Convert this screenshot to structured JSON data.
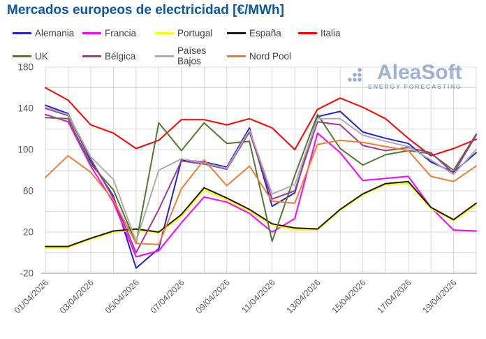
{
  "header": {
    "title": "Mercados europeos de electricidad [€/MWh]"
  },
  "watermark": {
    "brand": "AleaSoft",
    "tagline": "ENERGY FORECASTING",
    "color": "#3e68a8"
  },
  "axis_colors": {
    "grid": "#d9d9d9",
    "axis_line": "#a6a6a6",
    "tick_text": "#595959"
  },
  "chart_data": {
    "type": "line",
    "title": "Mercados europeos de electricidad [€/MWh]",
    "xlabel": "",
    "ylabel": "",
    "ylim": [
      -20,
      180
    ],
    "grid_interval": 20,
    "grid": true,
    "legend_position": "top",
    "ytick_labels": [
      180,
      140,
      100,
      60,
      20,
      -20
    ],
    "x_dates": [
      "01/04/2026",
      "02/04/2026",
      "03/04/2026",
      "04/04/2026",
      "05/04/2026",
      "06/04/2026",
      "07/04/2026",
      "08/04/2026",
      "09/04/2026",
      "10/04/2026",
      "11/04/2026",
      "12/04/2026",
      "13/04/2026",
      "14/04/2026",
      "15/04/2026",
      "16/04/2026",
      "17/04/2026",
      "18/04/2026",
      "19/04/2026",
      "20/04/2026"
    ],
    "x_tick_labels": [
      "01/04/2026",
      "03/04/2026",
      "05/04/2026",
      "07/04/2026",
      "09/04/2026",
      "11/04/2026",
      "13/04/2026",
      "15/04/2026",
      "17/04/2026",
      "19/04/2026"
    ],
    "series": [
      {
        "name": "Alemania",
        "color": "#2222e0",
        "values": [
          143,
          135,
          89,
          55,
          -15,
          4,
          90,
          88,
          83,
          121,
          45,
          58,
          132,
          137,
          117,
          111,
          106,
          88,
          78,
          97
        ]
      },
      {
        "name": "Francia",
        "color": "#ff00ff",
        "values": [
          134,
          127,
          84,
          49,
          -4,
          2,
          29,
          54,
          49,
          38,
          20,
          33,
          116,
          97,
          70,
          72,
          74,
          44,
          22,
          21
        ]
      },
      {
        "name": "Portugal",
        "color": "#ffff00",
        "values": [
          5,
          5,
          13,
          20,
          22,
          19,
          35,
          61,
          51,
          40,
          27,
          22,
          22,
          41,
          56,
          66,
          67,
          43,
          31,
          46
        ]
      },
      {
        "name": "España",
        "color": "#1a1a1a",
        "values": [
          6,
          6,
          14,
          21,
          23,
          20,
          37,
          63,
          53,
          42,
          28,
          24,
          23,
          42,
          57,
          67,
          69,
          44,
          32,
          48
        ]
      },
      {
        "name": "Italia",
        "color": "#ff0000",
        "values": [
          160,
          148,
          124,
          116,
          101,
          109,
          129,
          129,
          124,
          130,
          121,
          100,
          139,
          150,
          141,
          130,
          111,
          94,
          101,
          110
        ]
      },
      {
        "name": "UK",
        "color": "#4e7b31",
        "values": [
          131,
          130,
          86,
          61,
          9,
          126,
          99,
          126,
          106,
          108,
          11,
          75,
          134,
          101,
          85,
          95,
          99,
          96,
          80,
          115
        ]
      },
      {
        "name": "Bélgica",
        "color": "#9e3a96",
        "values": [
          140,
          133,
          91,
          53,
          0,
          42,
          89,
          86,
          81,
          117,
          52,
          60,
          127,
          124,
          104,
          99,
          102,
          97,
          77,
          114
        ]
      },
      {
        "name": "Países Bajos",
        "color": "#adadad",
        "values": [
          141,
          134,
          93,
          71,
          11,
          80,
          91,
          87,
          82,
          119,
          57,
          66,
          130,
          130,
          114,
          108,
          103,
          90,
          76,
          100
        ]
      },
      {
        "name": "Nord Pool",
        "color": "#ed7d31",
        "values": [
          73,
          94,
          78,
          51,
          9,
          8,
          62,
          90,
          65,
          84,
          50,
          48,
          105,
          109,
          107,
          103,
          99,
          74,
          69,
          84
        ]
      }
    ]
  }
}
